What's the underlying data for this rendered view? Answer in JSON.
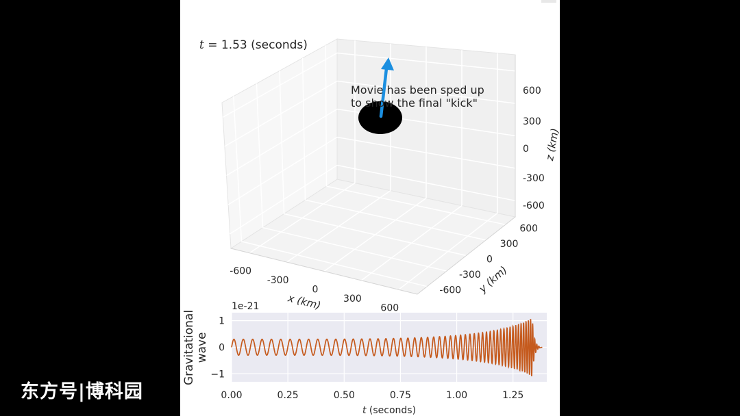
{
  "time_display": {
    "prefix": "t",
    "text": " = 1.53 (seconds)"
  },
  "annotation": {
    "line1": "Movie has been sped up",
    "line2": "to show the final \"kick\""
  },
  "watermark": "东方号|博科园",
  "colors": {
    "arrow": "#1b8fe0",
    "wave": "#c55a1d",
    "wave_bg": "#eaeaf2",
    "pane_bg": "#f7f7f7",
    "background": "#000000"
  },
  "chart_data": [
    {
      "type": "3d-scene",
      "xlabel": "x (km)",
      "ylabel": "y (km)",
      "zlabel": "z (km)",
      "xticks": [
        "-600",
        "-300",
        "0",
        "300",
        "600"
      ],
      "yticks": [
        "600",
        "300",
        "0",
        "-300",
        "-600"
      ],
      "zticks": [
        "600",
        "300",
        "0",
        "-300",
        "-600"
      ],
      "xlim": [
        -600,
        600
      ],
      "ylim": [
        -600,
        600
      ],
      "zlim": [
        -600,
        600
      ],
      "black_hole": {
        "x": 0,
        "y": 0,
        "z": 300,
        "shape": "black disk"
      },
      "kick_arrow": {
        "direction": "+z"
      }
    },
    {
      "type": "line",
      "xlabel": "t (seconds)",
      "ylabel": "Gravitational wave",
      "offset_text": "1e-21",
      "xlim": [
        0,
        1.4
      ],
      "ylim": [
        -1.3,
        1.3
      ],
      "xticks": [
        "0.00",
        "0.25",
        "0.50",
        "0.75",
        "1.00",
        "1.25"
      ],
      "yticks": [
        "1",
        "0",
        "−1"
      ],
      "series": [
        {
          "start_t": 0.0,
          "merger_t": 1.335,
          "end_t": 1.37,
          "early_amplitude": 0.3,
          "peak_amplitude": 1.15,
          "early_frequency_hz": 24,
          "merger_frequency_hz": 110
        }
      ]
    }
  ]
}
